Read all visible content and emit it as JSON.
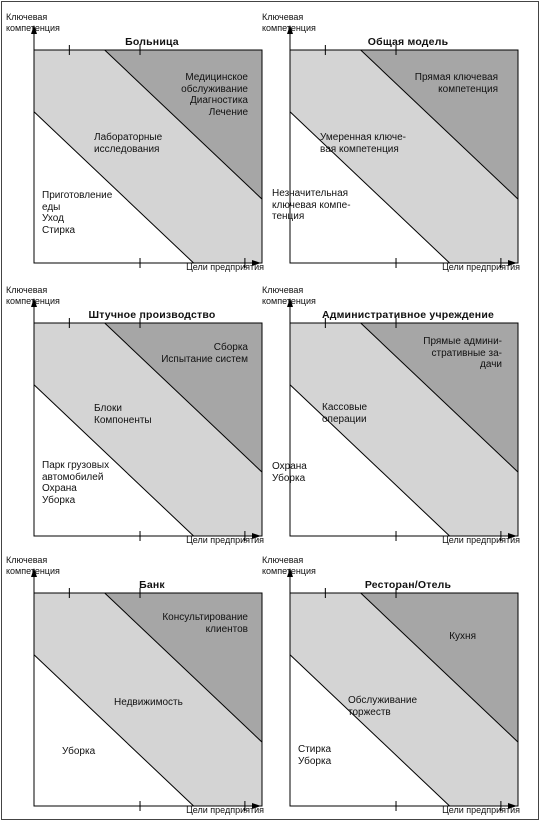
{
  "ylabel": [
    "Ключевая",
    "компетенция"
  ],
  "xlabel": "Цели предприятия",
  "colors": {
    "dark": "#a6a6a6",
    "mid": "#d4d4d4",
    "light": "#ffffff",
    "line": "#000000"
  },
  "panels": [
    {
      "title": "Больница",
      "dark": [
        "Медицинское",
        "обслуживание",
        "Диагностика",
        "Лечение"
      ],
      "mid": [
        "Лабораторные",
        "исследования"
      ],
      "light": [
        "Приготовление",
        "еды",
        "Уход",
        "Стирка"
      ]
    },
    {
      "title": "Общая модель",
      "dark": [
        "Прямая ключевая",
        "компетенция"
      ],
      "mid": [
        "Умеренная ключе-",
        "вая компетенция"
      ],
      "light": [
        "Незначительная",
        "ключевая компе-",
        "тенция"
      ]
    },
    {
      "title": "Штучное производство",
      "dark": [
        "Сборка",
        "Испытание систем"
      ],
      "mid": [
        "Блоки",
        "Компоненты"
      ],
      "light": [
        "Парк грузовых",
        "автомобилей",
        "Охрана",
        "Уборка"
      ]
    },
    {
      "title": "Административное учреждение",
      "dark": [
        "Прямые админи-",
        "стративные за-",
        "дачи"
      ],
      "mid": [
        "Кассовые",
        "операции"
      ],
      "light": [
        "Охрана",
        "Уборка"
      ]
    },
    {
      "title": "Банк",
      "dark": [
        "Консультирование",
        "клиентов"
      ],
      "mid": [
        "Недвижимость"
      ],
      "light": [
        "Уборка"
      ]
    },
    {
      "title": "Ресторан/Отель",
      "dark": [
        "Кухня"
      ],
      "mid": [
        "Обслуживание",
        "торжеств"
      ],
      "light": [
        "Стирка",
        "Уборка"
      ]
    }
  ]
}
